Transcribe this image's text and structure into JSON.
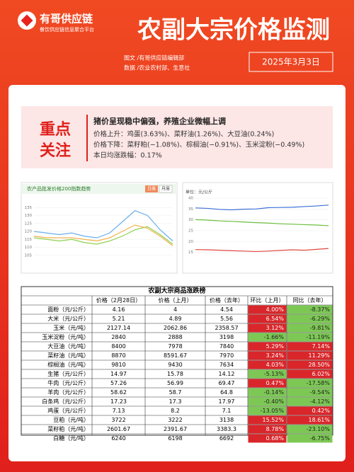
{
  "header": {
    "logo": "有哥供应链",
    "logo_sub": "餐饮供应链信息聚合平台",
    "title": "农副大宗价格监测",
    "credits": [
      "图文 /有哥供应链编辑部",
      "数据 /农业农村部、生意社"
    ],
    "date": "2025年3月3日"
  },
  "focus": {
    "label": [
      "重点",
      "关注"
    ],
    "headline": "猪价呈现稳中偏强，养殖企业微幅上调",
    "lines": [
      "价格上升：鸡蛋(3.63%)、菜籽油(1.26%)、大豆油(0.24%)",
      "价格下降：菜籽粕(−1.08%)、棕榈油(−0.91%)、玉米淀粉(−0.49%)",
      "本日均涨跌幅：0.17%"
    ]
  },
  "chart_data": [
    {
      "type": "line",
      "title": "农产品批发价格200指数趋势",
      "buttons": [
        "日度",
        "月度"
      ],
      "categories": [
        null,
        null,
        null,
        null,
        null,
        null,
        null,
        null,
        null,
        null,
        null,
        null
      ],
      "series": [
        {
          "color": "#8fd14f",
          "values": [
            116,
            115,
            114,
            115,
            113,
            112,
            114,
            117,
            121,
            123,
            118,
            112
          ]
        },
        {
          "color": "#6aaee8",
          "values": [
            120,
            119,
            118,
            119,
            117,
            116,
            119,
            126,
            133,
            130,
            121,
            114
          ]
        },
        {
          "color": "#f0b24a",
          "values": [
            117,
            116,
            116,
            116,
            115,
            114,
            116,
            120,
            124,
            122,
            117,
            111
          ]
        }
      ],
      "ylim": [
        100,
        140
      ],
      "yticks": [
        105,
        110,
        115,
        120,
        125,
        130,
        135
      ],
      "grid": true
    },
    {
      "type": "line",
      "y_label": "单位：元/公斤",
      "categories": [
        null,
        null,
        null,
        null,
        null,
        null,
        null,
        null,
        null,
        null,
        null,
        null
      ],
      "series": [
        {
          "color": "#3b6fd8",
          "values": [
            35.5,
            35.3,
            34.8,
            34.6,
            34.9,
            35.0,
            35.6,
            35.7,
            35.8,
            36.1,
            36.4,
            36.8
          ]
        },
        {
          "color": "#6bbd3c",
          "values": [
            30.1,
            29.9,
            29.5,
            29.3,
            29.0,
            28.7,
            28.5,
            28.2,
            28.0,
            27.8,
            27.6,
            27.3
          ]
        },
        {
          "color": "#e0483e",
          "values": [
            16.3,
            16.2,
            16.0,
            15.8,
            15.6,
            15.4,
            15.6,
            15.9,
            16.2,
            16.0,
            16.4,
            16.8
          ]
        }
      ],
      "ylim": [
        10,
        40
      ],
      "yticks": [
        15,
        20,
        25,
        30,
        35,
        40
      ],
      "grid": true
    }
  ],
  "table": {
    "title": "农副大宗商品涨跌榜",
    "columns": [
      "",
      "价格（2月28日）",
      "价格（上月）",
      "价格（去年）",
      "环比（上月）",
      "同比（去年）"
    ],
    "rows": [
      [
        "面粉（元/公斤）",
        "4.16",
        "4",
        "4.54",
        "4.00%",
        "-8.37%"
      ],
      [
        "大米（元/公斤）",
        "5.21",
        "4.89",
        "5.56",
        "6.54%",
        "-6.29%"
      ],
      [
        "玉米（元/吨）",
        "2127.14",
        "2062.86",
        "2358.57",
        "3.12%",
        "-9.81%"
      ],
      [
        "玉米淀粉（元/吨）",
        "2840",
        "2888",
        "3198",
        "-1.66%",
        "-11.19%"
      ],
      [
        "大豆油（元/吨）",
        "8400",
        "7978",
        "7840",
        "5.29%",
        "7.14%"
      ],
      [
        "菜籽油（元/吨）",
        "8870",
        "8591.67",
        "7970",
        "3.24%",
        "11.29%"
      ],
      [
        "棕榈油（元/吨）",
        "9810",
        "9430",
        "7634",
        "4.03%",
        "28.50%"
      ],
      [
        "生猪（元/公斤）",
        "14.97",
        "15.78",
        "14.12",
        "-5.13%",
        "6.02%"
      ],
      [
        "牛肉（元/公斤）",
        "57.26",
        "56.99",
        "69.47",
        "0.47%",
        "-17.58%"
      ],
      [
        "羊肉（元/公斤）",
        "58.62",
        "58.7",
        "64.8",
        "-0.14%",
        "-9.54%"
      ],
      [
        "白条鸡（元/公斤）",
        "17.23",
        "17.3",
        "17.97",
        "-0.40%",
        "-4.12%"
      ],
      [
        "鸡蛋（元/公斤）",
        "7.13",
        "8.2",
        "7.1",
        "-13.05%",
        "0.42%"
      ],
      [
        "豆粕（元/吨）",
        "3722",
        "3222",
        "3138",
        "15.52%",
        "18.61%"
      ],
      [
        "菜籽粕（元/吨）",
        "2601.67",
        "2391.67",
        "3383.3",
        "8.78%",
        "-23.10%"
      ],
      [
        "白糖（元/吨）",
        "6240",
        "6198",
        "6692",
        "0.68%",
        "-6.75%"
      ]
    ]
  }
}
